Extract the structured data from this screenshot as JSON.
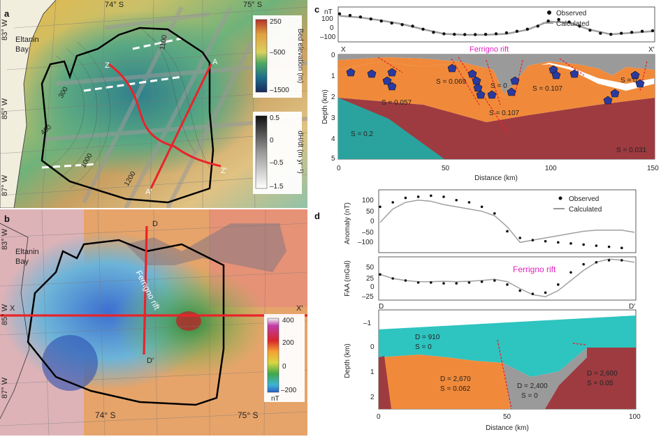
{
  "panel_a": {
    "letter": "a",
    "top_lat_labels": [
      "74° S",
      "75° S"
    ],
    "left_lon_labels": [
      "83° W",
      "85° W",
      "87° W"
    ],
    "place": [
      "Eltanin",
      "Bay"
    ],
    "contours": [
      "1100",
      "300",
      "400",
      "1000",
      "1200"
    ],
    "profile_ends": {
      "A": "A",
      "A2": "A′",
      "Z": "Z",
      "Z2": "Z′"
    },
    "legend_bed": {
      "ticks": [
        "250",
        "–500",
        "–1500"
      ],
      "title": "Bed elevation (m)"
    },
    "legend_dhdt": {
      "ticks": [
        "0.5",
        "0",
        "–0.5",
        "–1.5"
      ],
      "title": "dH/dt (m yr⁻¹)"
    }
  },
  "panel_b": {
    "letter": "b",
    "left_lon_labels": [
      "83° W",
      "85° W",
      "87° W"
    ],
    "bottom_lat_labels": [
      "74° S",
      "75° S"
    ],
    "place": [
      "Eltanin",
      "Bay"
    ],
    "rift_label": "Ferrigno rift",
    "profile_ends": {
      "D": "D",
      "D2": "D′",
      "X": "X",
      "X2": "X′"
    },
    "legend": {
      "ticks": [
        "400",
        "200",
        "0",
        "–200"
      ],
      "unit": "nT"
    }
  },
  "panel_c": {
    "letter": "c",
    "top_unit": "nT",
    "top_ticks": [
      "100",
      "0",
      "–100"
    ],
    "legend": {
      "observed": "Observed",
      "calculated": "Calculated"
    },
    "profile_ends": {
      "X": "X",
      "X2": "X′"
    },
    "rift_label": "Ferrigno rift",
    "ylabel": "Depth (km)",
    "xlabel": "Distance (km)",
    "y_ticks": [
      "0",
      "1",
      "2",
      "3",
      "4",
      "5"
    ],
    "x_ticks": [
      "0",
      "50",
      "100",
      "150"
    ],
    "s_labels": [
      "S = 0.069",
      "S = 0",
      "S = 0.107",
      "S = 0",
      "S = 0.057",
      "S = 0.107",
      "S = 0.2",
      "S = 0.031"
    ]
  },
  "panel_d": {
    "letter": "d",
    "anomaly": {
      "ylabel": "Anomaly (nT)",
      "ticks": [
        "100",
        "50",
        "0",
        "–50",
        "–100"
      ],
      "observed": "Observed",
      "calculated": "Calculated"
    },
    "faa": {
      "ylabel": "FAA (mGal)",
      "ticks": [
        "50",
        "25",
        "0",
        "–25"
      ],
      "rift_label": "Ferrigno rift"
    },
    "profile_ends": {
      "D": "D",
      "D2": "D′"
    },
    "depth": {
      "ylabel": "Depth (km)",
      "ticks": [
        "–1",
        "0",
        "1",
        "2"
      ],
      "xlabel": "Distance (km)",
      "x_ticks": [
        "0",
        "50",
        "100"
      ]
    },
    "blocks": [
      {
        "d": "D = 910",
        "s": "S = 0"
      },
      {
        "d": "D = 2,670",
        "s": "S = 0.062"
      },
      {
        "d": "D = 2,400",
        "s": "S = 0"
      },
      {
        "d": "D = 2,600",
        "s": "S = 0.05"
      }
    ]
  },
  "chart_data": [
    {
      "type": "line",
      "title": "",
      "panel": "c-top",
      "ylabel": "nT",
      "xlim": [
        0,
        150
      ],
      "ylim": [
        -150,
        150
      ],
      "series": [
        {
          "name": "Observed",
          "x": [
            0,
            5,
            10,
            15,
            20,
            25,
            30,
            35,
            40,
            45,
            50,
            55,
            60,
            65,
            70,
            75,
            80,
            85,
            90,
            95,
            100,
            105,
            110,
            115,
            120,
            125,
            130,
            135,
            140,
            145,
            150
          ],
          "y": [
            110,
            95,
            80,
            60,
            40,
            20,
            5,
            -10,
            -40,
            -70,
            -85,
            -90,
            -92,
            -92,
            -90,
            -85,
            -75,
            -60,
            -40,
            -10,
            40,
            55,
            30,
            -10,
            -50,
            -80,
            -90,
            -80,
            -70,
            -60,
            -55
          ]
        },
        {
          "name": "Calculated",
          "x": [
            0,
            10,
            20,
            30,
            40,
            50,
            60,
            70,
            80,
            90,
            100,
            110,
            120,
            130,
            140,
            150
          ],
          "y": [
            90,
            75,
            45,
            10,
            -40,
            -85,
            -95,
            -95,
            -85,
            -45,
            35,
            25,
            -45,
            -90,
            -75,
            -60
          ]
        }
      ]
    },
    {
      "type": "scatter",
      "title": "",
      "panel": "d-anomaly",
      "ylabel": "Anomaly (nT)",
      "xlim": [
        0,
        100
      ],
      "ylim": [
        -150,
        120
      ],
      "series": [
        {
          "name": "Observed",
          "x": [
            0,
            5,
            10,
            15,
            20,
            25,
            30,
            35,
            40,
            45,
            50,
            55,
            60,
            65,
            70,
            75,
            80,
            85,
            90,
            95
          ],
          "y": [
            50,
            70,
            90,
            95,
            100,
            95,
            80,
            70,
            50,
            20,
            -60,
            -90,
            -100,
            -105,
            -110,
            -115,
            -120,
            -125,
            -130,
            -135
          ]
        },
        {
          "name": "Calculated",
          "x": [
            0,
            5,
            10,
            15,
            20,
            25,
            30,
            35,
            40,
            45,
            50,
            55,
            60,
            65,
            70,
            75,
            80,
            85,
            90,
            95,
            100
          ],
          "y": [
            -20,
            40,
            70,
            80,
            75,
            60,
            50,
            40,
            30,
            10,
            -40,
            -110,
            -100,
            -90,
            -80,
            -70,
            -60,
            -55,
            -55,
            -55,
            -65
          ]
        }
      ]
    },
    {
      "type": "scatter",
      "title": "",
      "panel": "d-faa",
      "ylabel": "FAA (mGal)",
      "xlim": [
        0,
        100
      ],
      "ylim": [
        -30,
        70
      ],
      "series": [
        {
          "name": "Observed",
          "x": [
            0,
            5,
            10,
            15,
            20,
            25,
            30,
            35,
            40,
            45,
            50,
            55,
            60,
            65,
            70,
            75,
            80,
            85,
            90,
            95
          ],
          "y": [
            30,
            20,
            15,
            10,
            10,
            8,
            8,
            10,
            12,
            15,
            5,
            -10,
            -18,
            -15,
            5,
            35,
            55,
            60,
            65,
            65
          ]
        },
        {
          "name": "Calculated",
          "x": [
            0,
            5,
            10,
            15,
            20,
            25,
            30,
            35,
            40,
            45,
            50,
            55,
            60,
            65,
            70,
            75,
            80,
            85,
            90,
            95,
            100
          ],
          "y": [
            30,
            20,
            15,
            12,
            12,
            13,
            12,
            13,
            15,
            18,
            12,
            -5,
            -20,
            -25,
            -10,
            15,
            40,
            60,
            68,
            65,
            60
          ]
        }
      ]
    }
  ]
}
